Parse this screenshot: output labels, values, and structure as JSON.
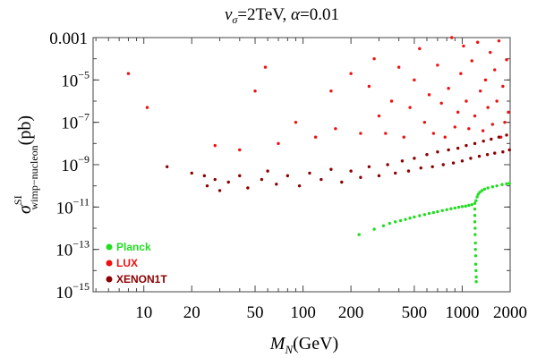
{
  "chart_data": {
    "type": "scatter",
    "title": {
      "sym": "v",
      "sub": "σ",
      "value": "=2TeV, ",
      "alpha_sym": "α",
      "alpha_value": "=0.01"
    },
    "xlabel": {
      "sym": "M",
      "sub": "N",
      "unit": "(GeV)"
    },
    "ylabel": {
      "sym": "σ",
      "sup": "SI",
      "sub": "wimp−nucleon",
      "unit": "(pb)"
    },
    "x_scale": "log",
    "y_scale": "log",
    "xlim": [
      4.8,
      2000
    ],
    "ylim": [
      1e-15,
      0.001
    ],
    "grid": false,
    "legend_placement": "bottom-left",
    "x_ticks": [
      {
        "value": 10,
        "label": "10"
      },
      {
        "value": 20,
        "label": "20"
      },
      {
        "value": 50,
        "label": "50"
      },
      {
        "value": 100,
        "label": "100"
      },
      {
        "value": 200,
        "label": "200"
      },
      {
        "value": 500,
        "label": "500"
      },
      {
        "value": 1000,
        "label": "1000"
      },
      {
        "value": 2000,
        "label": "2000"
      }
    ],
    "y_ticks": [
      {
        "value": 0.001,
        "label": "0.001"
      },
      {
        "value": 1e-05,
        "base": "10",
        "exp": "−5"
      },
      {
        "value": 1e-07,
        "base": "10",
        "exp": "−7"
      },
      {
        "value": 1e-09,
        "base": "10",
        "exp": "−9"
      },
      {
        "value": 1e-11,
        "base": "10",
        "exp": "−11"
      },
      {
        "value": 1e-13,
        "base": "10",
        "exp": "−13"
      },
      {
        "value": 1e-15,
        "base": "10",
        "exp": "−15"
      }
    ],
    "series": [
      {
        "name": "Planck",
        "color": "#22dd22",
        "points": [
          [
            225,
            5e-13
          ],
          [
            280,
            9e-13
          ],
          [
            320,
            1.3e-12
          ],
          [
            350,
            1.7e-12
          ],
          [
            380,
            2e-12
          ],
          [
            410,
            2.3e-12
          ],
          [
            440,
            2.6e-12
          ],
          [
            470,
            3e-12
          ],
          [
            500,
            3.4e-12
          ],
          [
            540,
            3.9e-12
          ],
          [
            580,
            4.4e-12
          ],
          [
            620,
            5e-12
          ],
          [
            660,
            5.5e-12
          ],
          [
            700,
            6e-12
          ],
          [
            750,
            6.8e-12
          ],
          [
            800,
            7.5e-12
          ],
          [
            850,
            8.3e-12
          ],
          [
            900,
            9e-12
          ],
          [
            950,
            9.8e-12
          ],
          [
            1000,
            1.05e-11
          ],
          [
            1050,
            1.1e-11
          ],
          [
            1100,
            1.2e-11
          ],
          [
            1150,
            1.3e-11
          ],
          [
            1200,
            1.5e-11
          ],
          [
            1220,
            2e-11
          ],
          [
            1240,
            3e-11
          ],
          [
            1260,
            4e-11
          ],
          [
            1290,
            5e-11
          ],
          [
            1330,
            6e-11
          ],
          [
            1380,
            7e-11
          ],
          [
            1450,
            8e-11
          ],
          [
            1550,
            9e-11
          ],
          [
            1650,
            1e-10
          ],
          [
            1780,
            1.15e-10
          ],
          [
            1900,
            1.25e-10
          ],
          [
            1980,
            1.3e-10
          ],
          [
            1200,
            8e-12
          ],
          [
            1200,
            4e-12
          ],
          [
            1200,
            2e-12
          ],
          [
            1205,
            1e-12
          ],
          [
            1205,
            5e-13
          ],
          [
            1210,
            2e-13
          ],
          [
            1210,
            1e-13
          ],
          [
            1215,
            5e-14
          ],
          [
            1215,
            2e-14
          ],
          [
            1220,
            1e-14
          ],
          [
            1225,
            5e-15
          ],
          [
            1225,
            3e-15
          ]
        ]
      },
      {
        "name": "LUX",
        "color": "#ee1111",
        "points": [
          [
            8,
            2e-05
          ],
          [
            10.5,
            5e-07
          ],
          [
            50,
            3e-06
          ],
          [
            58,
            4e-05
          ],
          [
            28,
            8e-09
          ],
          [
            40,
            5e-09
          ],
          [
            70,
            1e-08
          ],
          [
            90,
            1e-07
          ],
          [
            120,
            2e-08
          ],
          [
            150,
            3e-06
          ],
          [
            160,
            5e-08
          ],
          [
            200,
            2e-05
          ],
          [
            230,
            3e-08
          ],
          [
            260,
            5e-06
          ],
          [
            280,
            0.0001
          ],
          [
            300,
            2e-07
          ],
          [
            330,
            3e-08
          ],
          [
            360,
            1e-06
          ],
          [
            400,
            4e-05
          ],
          [
            430,
            2e-08
          ],
          [
            470,
            5e-07
          ],
          [
            500,
            1e-05
          ],
          [
            540,
            0.0003
          ],
          [
            580,
            1e-07
          ],
          [
            620,
            2e-06
          ],
          [
            660,
            3e-08
          ],
          [
            700,
            5e-05
          ],
          [
            740,
            8e-07
          ],
          [
            780,
            2e-08
          ],
          [
            820,
            4e-06
          ],
          [
            860,
            0.001
          ],
          [
            900,
            6e-08
          ],
          [
            940,
            3e-07
          ],
          [
            980,
            2e-05
          ],
          [
            1020,
            0.0004
          ],
          [
            1060,
            1e-06
          ],
          [
            1100,
            5e-08
          ],
          [
            1150,
            8e-05
          ],
          [
            1200,
            2e-07
          ],
          [
            1250,
            0.0006
          ],
          [
            1300,
            3e-06
          ],
          [
            1350,
            4e-08
          ],
          [
            1400,
            1e-05
          ],
          [
            1450,
            5e-07
          ],
          [
            1500,
            0.0002
          ],
          [
            1550,
            8e-08
          ],
          [
            1600,
            3e-05
          ],
          [
            1650,
            1e-06
          ],
          [
            1700,
            0.0007
          ],
          [
            1750,
            2e-08
          ],
          [
            1800,
            5e-06
          ],
          [
            1850,
            1e-07
          ],
          [
            1900,
            9e-05
          ],
          [
            1950,
            3e-07
          ],
          [
            1990,
            0.002
          ]
        ]
      },
      {
        "name": "XENON1T",
        "color": "#8b0000",
        "points": [
          [
            14,
            8e-10
          ],
          [
            20,
            4e-10
          ],
          [
            24,
            3e-10
          ],
          [
            25,
            1e-10
          ],
          [
            28,
            2e-10
          ],
          [
            30,
            6e-11
          ],
          [
            34,
            1.5e-10
          ],
          [
            40,
            3e-10
          ],
          [
            45,
            8e-11
          ],
          [
            55,
            2e-10
          ],
          [
            60,
            5e-10
          ],
          [
            68,
            1.2e-10
          ],
          [
            80,
            3e-10
          ],
          [
            95,
            1e-10
          ],
          [
            110,
            4e-10
          ],
          [
            130,
            2e-10
          ],
          [
            150,
            6e-10
          ],
          [
            175,
            1.5e-10
          ],
          [
            200,
            5e-10
          ],
          [
            230,
            2.5e-10
          ],
          [
            260,
            8e-10
          ],
          [
            300,
            3e-10
          ],
          [
            340,
            1e-09
          ],
          [
            380,
            4e-10
          ],
          [
            420,
            1.5e-09
          ],
          [
            460,
            5e-10
          ],
          [
            500,
            2e-09
          ],
          [
            550,
            7e-10
          ],
          [
            600,
            3e-09
          ],
          [
            650,
            8e-10
          ],
          [
            700,
            4e-09
          ],
          [
            760,
            1e-09
          ],
          [
            820,
            5e-09
          ],
          [
            880,
            1.2e-09
          ],
          [
            940,
            6e-09
          ],
          [
            1000,
            1.5e-09
          ],
          [
            1060,
            8e-09
          ],
          [
            1130,
            2e-09
          ],
          [
            1200,
            1e-08
          ],
          [
            1280,
            2.5e-09
          ],
          [
            1360,
            1.3e-08
          ],
          [
            1440,
            3e-09
          ],
          [
            1520,
            1.6e-08
          ],
          [
            1600,
            3.5e-09
          ],
          [
            1700,
            2e-08
          ],
          [
            1800,
            4e-09
          ],
          [
            1900,
            2.5e-08
          ],
          [
            1980,
            5e-09
          ]
        ]
      }
    ]
  }
}
